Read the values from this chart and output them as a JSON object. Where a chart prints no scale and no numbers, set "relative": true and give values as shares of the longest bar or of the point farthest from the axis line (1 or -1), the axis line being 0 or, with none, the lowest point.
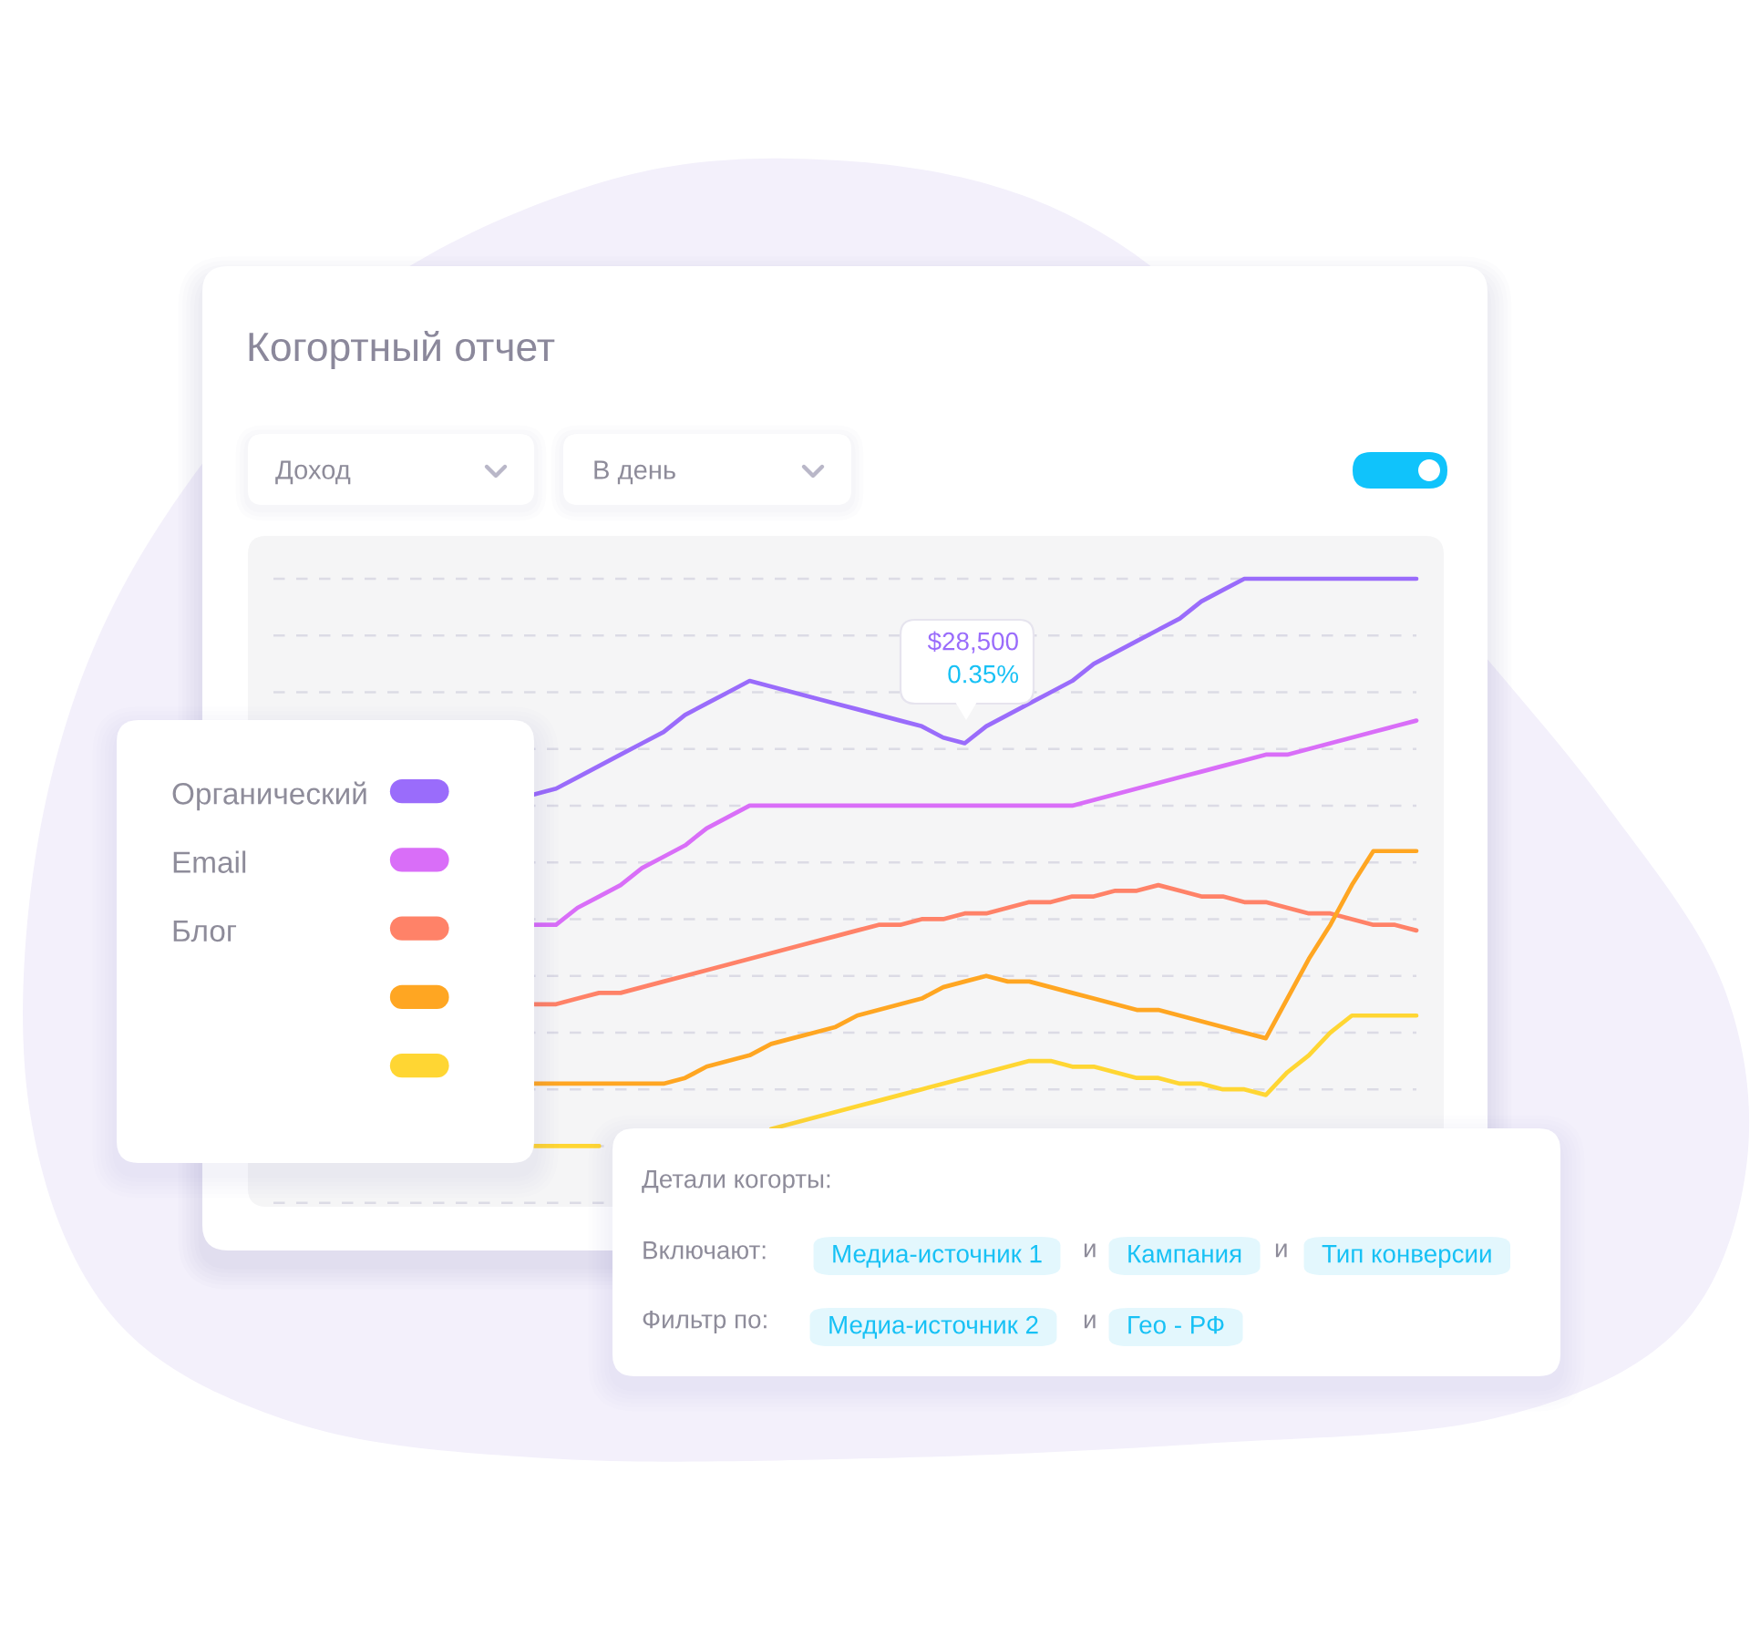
{
  "chart_data": {
    "type": "line",
    "title": "Когортный отчет",
    "relative": true,
    "grid": "y",
    "legend": "left",
    "line_style": "solid",
    "categories": [
      null,
      null,
      null,
      null,
      null,
      null,
      null,
      null,
      null,
      null,
      null,
      null,
      null,
      null,
      null,
      null,
      null,
      null,
      null,
      null,
      null,
      null,
      null,
      null,
      null,
      null,
      null,
      null,
      null,
      null,
      null,
      null,
      null,
      null,
      null,
      null,
      null,
      null,
      null,
      null,
      null,
      null
    ],
    "series": [
      {
        "name": "Органический",
        "color": "#9a6cfb",
        "values": [
          0.62,
          0.63,
          0.65,
          0.67,
          0.69,
          0.71,
          0.73,
          0.76,
          0.78,
          0.8,
          0.82,
          0.81,
          0.8,
          0.79,
          0.78,
          0.77,
          0.76,
          0.75,
          0.74,
          0.72,
          0.71,
          0.74,
          0.76,
          0.78,
          0.8,
          0.82,
          0.85,
          0.87,
          0.89,
          0.91,
          0.93,
          0.96,
          0.98,
          1,
          1,
          1,
          1,
          1,
          1,
          1,
          1,
          1
        ]
      },
      {
        "name": "Email",
        "color": "#d96ef8",
        "values": [
          0.39,
          0.39,
          0.42,
          0.44,
          0.46,
          0.49,
          0.51,
          0.53,
          0.56,
          0.58,
          0.6,
          0.6,
          0.6,
          0.6,
          0.6,
          0.6,
          0.6,
          0.6,
          0.6,
          0.6,
          0.6,
          0.6,
          0.6,
          0.6,
          0.6,
          0.6,
          0.61,
          0.62,
          0.63,
          0.64,
          0.65,
          0.66,
          0.67,
          0.68,
          0.69,
          0.69,
          0.7,
          0.71,
          0.72,
          0.73,
          0.74,
          0.75
        ]
      },
      {
        "name": "Блог",
        "color": "#ff8268",
        "values": [
          0.25,
          0.25,
          0.26,
          0.27,
          0.27,
          0.28,
          0.29,
          0.3,
          0.31,
          0.32,
          0.33,
          0.34,
          0.35,
          0.36,
          0.37,
          0.38,
          0.39,
          0.39,
          0.4,
          0.4,
          0.41,
          0.41,
          0.42,
          0.43,
          0.43,
          0.44,
          0.44,
          0.45,
          0.45,
          0.46,
          0.45,
          0.44,
          0.44,
          0.43,
          0.43,
          0.42,
          0.41,
          0.41,
          0.4,
          0.39,
          0.39,
          0.38
        ]
      },
      {
        "color": "#ffa622",
        "values": [
          0.11,
          0.11,
          0.11,
          0.11,
          0.11,
          0.11,
          0.11,
          0.12,
          0.14,
          0.15,
          0.16,
          0.18,
          0.19,
          0.2,
          0.21,
          0.23,
          0.24,
          0.25,
          0.26,
          0.28,
          0.29,
          0.3,
          0.29,
          0.29,
          0.28,
          0.27,
          0.26,
          0.25,
          0.24,
          0.24,
          0.23,
          0.22,
          0.21,
          0.2,
          0.19,
          0.26,
          0.33,
          0.39,
          0.46,
          0.52,
          0.52,
          0.52
        ]
      },
      {
        "color": "#ffd633",
        "values": [
          0,
          0,
          0,
          0,
          null,
          null,
          null,
          null,
          null,
          null,
          null,
          0.03,
          0.04,
          0.05,
          0.06,
          0.07,
          0.08,
          0.09,
          0.1,
          0.11,
          0.12,
          0.13,
          0.14,
          0.15,
          0.15,
          0.14,
          0.14,
          0.13,
          0.12,
          0.12,
          0.11,
          0.11,
          0.1,
          0.1,
          0.09,
          0.13,
          0.16,
          0.2,
          0.23,
          0.23,
          0.23,
          0.23
        ]
      }
    ],
    "annotations": [
      "Доход",
      "В день",
      "$28,500",
      "0.35%",
      "Детали когорты:",
      "Включают:",
      "Медиа-источник 1",
      "и",
      "Кампания",
      "и",
      "Тип конверсии",
      "Фильтр по:",
      "Медиа-источник 2",
      "и",
      "Гео - РФ"
    ]
  }
}
